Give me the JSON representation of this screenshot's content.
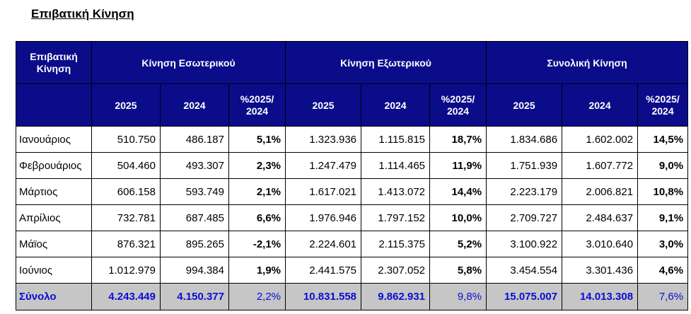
{
  "title": "Επιβατική Κίνηση",
  "header": {
    "row_label": "Επιβατική Κίνηση",
    "groups": [
      "Κίνηση Εσωτερικού",
      "Κίνηση Εξωτερικού",
      "Συνολική Κίνηση"
    ],
    "year_current": "2025",
    "year_previous": "2024",
    "pct_label": "%2025/ 2024"
  },
  "rows": [
    {
      "month": "Ιανουάριος",
      "vals": [
        "510.750",
        "486.187",
        "5,1%",
        "1.323.936",
        "1.115.815",
        "18,7%",
        "1.834.686",
        "1.602.002",
        "14,5%"
      ]
    },
    {
      "month": "Φεβρουάριος",
      "vals": [
        "504.460",
        "493.307",
        "2,3%",
        "1.247.479",
        "1.114.465",
        "11,9%",
        "1.751.939",
        "1.607.772",
        "9,0%"
      ]
    },
    {
      "month": "Μάρτιος",
      "vals": [
        "606.158",
        "593.749",
        "2,1%",
        "1.617.021",
        "1.413.072",
        "14,4%",
        "2.223.179",
        "2.006.821",
        "10,8%"
      ]
    },
    {
      "month": "Απρίλιος",
      "vals": [
        "732.781",
        "687.485",
        "6,6%",
        "1.976.946",
        "1.797.152",
        "10,0%",
        "2.709.727",
        "2.484.637",
        "9,1%"
      ]
    },
    {
      "month": "Μάϊος",
      "vals": [
        "876.321",
        "895.265",
        "-2,1%",
        "2.224.601",
        "2.115.375",
        "5,2%",
        "3.100.922",
        "3.010.640",
        "3,0%"
      ]
    },
    {
      "month": "Ιούνιος",
      "vals": [
        "1.012.979",
        "994.384",
        "1,9%",
        "2.441.575",
        "2.307.052",
        "5,8%",
        "3.454.554",
        "3.301.436",
        "4,6%"
      ]
    }
  ],
  "total": {
    "label": "Σύνολο",
    "vals": [
      "4.243.449",
      "4.150.377",
      "2,2%",
      "10.831.558",
      "9.862.931",
      "9,8%",
      "15.075.007",
      "14.013.308",
      "7,6%"
    ]
  },
  "colors": {
    "header_bg": "#0a0c8a",
    "total_bg": "#c6c6c6",
    "total_text": "#0a0cd6"
  }
}
